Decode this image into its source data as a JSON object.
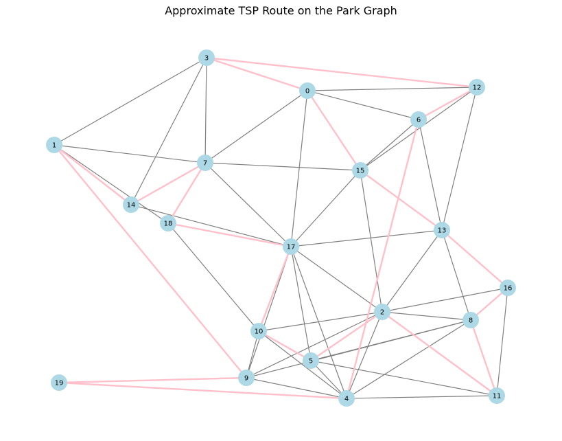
{
  "title": "Approximate TSP Route on the Park Graph",
  "colors": {
    "node_fill": "#add8e6",
    "edge": "#808080",
    "route": "#ffc0cb"
  },
  "nodes": [
    {
      "id": "0",
      "label": "0"
    },
    {
      "id": "1",
      "label": "1"
    },
    {
      "id": "2",
      "label": "2"
    },
    {
      "id": "3",
      "label": "3"
    },
    {
      "id": "4",
      "label": "4"
    },
    {
      "id": "5",
      "label": "5"
    },
    {
      "id": "6",
      "label": "6"
    },
    {
      "id": "7",
      "label": "7"
    },
    {
      "id": "8",
      "label": "8"
    },
    {
      "id": "9",
      "label": "9"
    },
    {
      "id": "10",
      "label": "10"
    },
    {
      "id": "11",
      "label": "11"
    },
    {
      "id": "12",
      "label": "12"
    },
    {
      "id": "13",
      "label": "13"
    },
    {
      "id": "14",
      "label": "14"
    },
    {
      "id": "15",
      "label": "15"
    },
    {
      "id": "16",
      "label": "16"
    },
    {
      "id": "17",
      "label": "17"
    },
    {
      "id": "18",
      "label": "18"
    },
    {
      "id": "19",
      "label": "19"
    }
  ],
  "edges": [
    [
      "3",
      "1"
    ],
    [
      "3",
      "7"
    ],
    [
      "3",
      "14"
    ],
    [
      "0",
      "12"
    ],
    [
      "0",
      "6"
    ],
    [
      "0",
      "7"
    ],
    [
      "0",
      "17"
    ],
    [
      "6",
      "15"
    ],
    [
      "6",
      "13"
    ],
    [
      "12",
      "15"
    ],
    [
      "12",
      "13"
    ],
    [
      "1",
      "7"
    ],
    [
      "1",
      "18"
    ],
    [
      "7",
      "15"
    ],
    [
      "7",
      "17"
    ],
    [
      "14",
      "17"
    ],
    [
      "15",
      "17"
    ],
    [
      "15",
      "2"
    ],
    [
      "13",
      "17"
    ],
    [
      "13",
      "2"
    ],
    [
      "13",
      "8"
    ],
    [
      "16",
      "2"
    ],
    [
      "16",
      "11"
    ],
    [
      "17",
      "2"
    ],
    [
      "17",
      "5"
    ],
    [
      "17",
      "4"
    ],
    [
      "17",
      "9"
    ],
    [
      "18",
      "10"
    ],
    [
      "10",
      "2"
    ],
    [
      "10",
      "4"
    ],
    [
      "10",
      "9"
    ],
    [
      "2",
      "8"
    ],
    [
      "2",
      "9"
    ],
    [
      "2",
      "4"
    ],
    [
      "8",
      "5"
    ],
    [
      "8",
      "4"
    ],
    [
      "8",
      "9"
    ],
    [
      "5",
      "11"
    ],
    [
      "5",
      "4"
    ],
    [
      "9",
      "4"
    ],
    [
      "4",
      "11"
    ]
  ],
  "route": [
    [
      "3",
      "12"
    ],
    [
      "3",
      "0"
    ],
    [
      "0",
      "15"
    ],
    [
      "15",
      "13"
    ],
    [
      "13",
      "16"
    ],
    [
      "16",
      "8"
    ],
    [
      "8",
      "11"
    ],
    [
      "11",
      "2"
    ],
    [
      "2",
      "5"
    ],
    [
      "5",
      "10"
    ],
    [
      "10",
      "17"
    ],
    [
      "17",
      "18"
    ],
    [
      "18",
      "7"
    ],
    [
      "7",
      "14"
    ],
    [
      "14",
      "1"
    ],
    [
      "1",
      "9"
    ],
    [
      "9",
      "19"
    ],
    [
      "19",
      "4"
    ],
    [
      "4",
      "6"
    ],
    [
      "6",
      "12"
    ]
  ]
}
